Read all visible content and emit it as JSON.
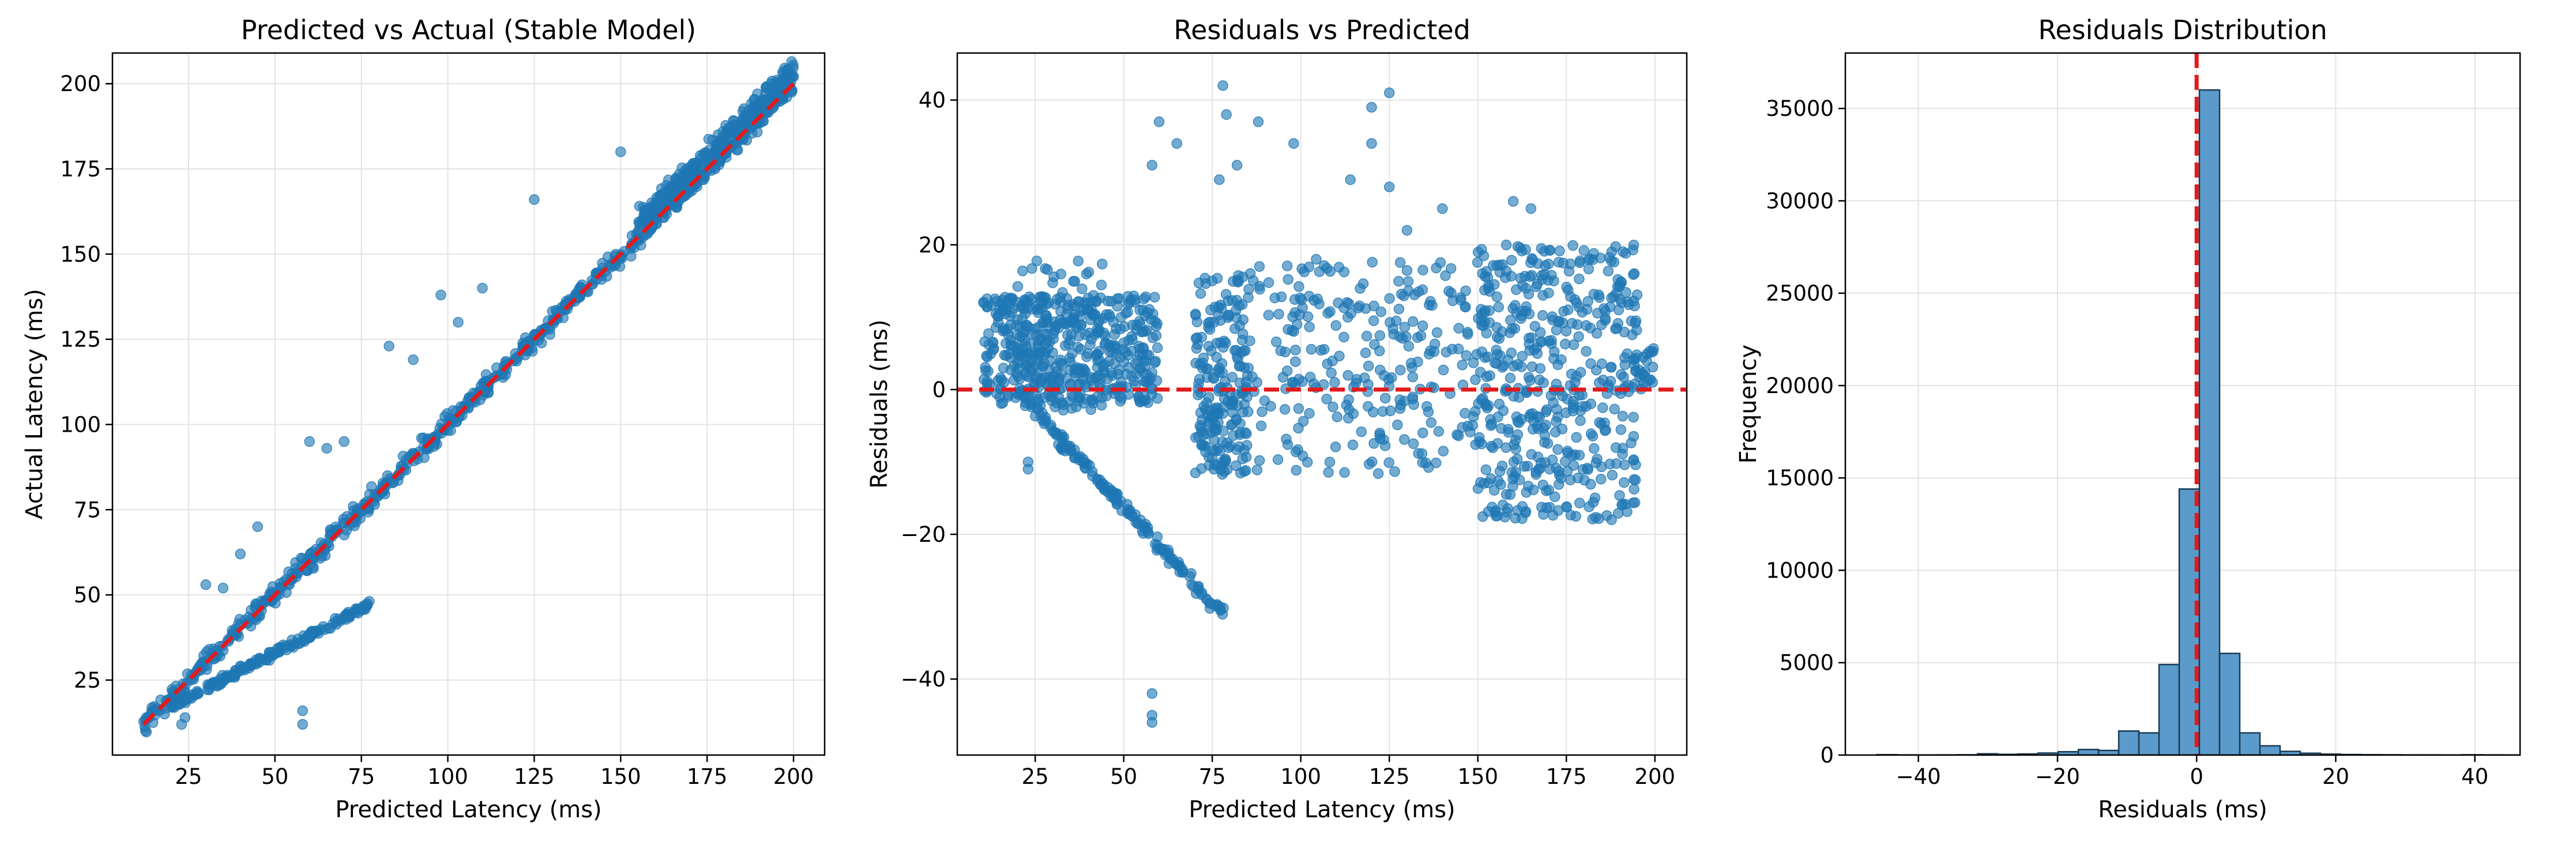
{
  "chart_data": [
    {
      "type": "scatter",
      "title": "Predicted vs Actual (Stable Model)",
      "xlabel": "Predicted Latency (ms)",
      "ylabel": "Actual Latency (ms)",
      "xlim": [
        3,
        209
      ],
      "ylim": [
        3,
        209
      ],
      "xticks": [
        25,
        50,
        75,
        100,
        125,
        150,
        175,
        200
      ],
      "yticks": [
        25,
        50,
        75,
        100,
        125,
        150,
        175,
        200
      ],
      "grid": true,
      "point_color": "#1f77b4",
      "reference_line": {
        "color": "#e31a1c",
        "style": "dashed",
        "x": [
          12,
          200
        ],
        "y": [
          12,
          200
        ]
      },
      "series": [
        {
          "segments": [
            {
              "x0": 12,
              "x1": 200,
              "slope": 1.0,
              "intercept": 0,
              "spread": 5,
              "n": 700
            },
            {
              "x0": 20,
              "x1": 78,
              "slope": 0.52,
              "intercept": 7,
              "spread": 2,
              "n": 180
            },
            {
              "x0": 155,
              "x1": 200,
              "slope": 1.0,
              "intercept": 4,
              "spread": 7,
              "n": 260
            }
          ],
          "outliers": [
            [
              23,
              12
            ],
            [
              24,
              14
            ],
            [
              58,
              12
            ],
            [
              58,
              16
            ],
            [
              30,
              53
            ],
            [
              35,
              52
            ],
            [
              60,
              95
            ],
            [
              65,
              93
            ],
            [
              98,
              138
            ],
            [
              125,
              166
            ],
            [
              150,
              180
            ],
            [
              70,
              95
            ],
            [
              83,
              123
            ],
            [
              110,
              140
            ],
            [
              45,
              70
            ],
            [
              40,
              62
            ],
            [
              90,
              119
            ],
            [
              103,
              130
            ]
          ]
        }
      ]
    },
    {
      "type": "scatter",
      "title": "Residuals vs Predicted",
      "xlabel": "Predicted Latency (ms)",
      "ylabel": "Residuals (ms)",
      "xlim": [
        3,
        209
      ],
      "ylim": [
        -50.5,
        46.5
      ],
      "xticks": [
        25,
        50,
        75,
        100,
        125,
        150,
        175,
        200
      ],
      "yticks": [
        -40,
        -20,
        0,
        20,
        40
      ],
      "grid": true,
      "point_color": "#1f77b4",
      "reference_line": {
        "color": "#e31a1c",
        "style": "dashed",
        "y": 0
      },
      "series": [
        {
          "clusters": [
            {
              "x0": 10,
              "x1": 60,
              "ymin": -2,
              "ymax": 13,
              "n": 420
            },
            {
              "x0": 20,
              "x1": 45,
              "ymin": -3,
              "ymax": 18,
              "n": 120
            },
            {
              "x0": 70,
              "x1": 85,
              "ymin": -12,
              "ymax": 16,
              "n": 200
            },
            {
              "x0": 85,
              "x1": 150,
              "ymin": -12,
              "ymax": 18,
              "n": 260
            },
            {
              "x0": 150,
              "x1": 195,
              "ymin": -18,
              "ymax": 20,
              "n": 480
            },
            {
              "x0": 195,
              "x1": 200,
              "ymin": 0,
              "ymax": 6,
              "n": 20
            }
          ],
          "trail": {
            "x0": 23,
            "x1": 78,
            "y0": -2,
            "y1": -31,
            "n": 160
          },
          "outliers": [
            [
              58,
              -45
            ],
            [
              58,
              -46
            ],
            [
              58,
              -42
            ],
            [
              23,
              -10
            ],
            [
              23,
              -11
            ],
            [
              78,
              42
            ],
            [
              60,
              37
            ],
            [
              65,
              34
            ],
            [
              79,
              38
            ],
            [
              98,
              34
            ],
            [
              120,
              34
            ],
            [
              125,
              41
            ],
            [
              120,
              39
            ],
            [
              77,
              29
            ],
            [
              82,
              31
            ],
            [
              125,
              28
            ],
            [
              130,
              22
            ],
            [
              140,
              25
            ],
            [
              160,
              26
            ],
            [
              165,
              25
            ],
            [
              58,
              31
            ],
            [
              88,
              37
            ],
            [
              114,
              29
            ]
          ]
        }
      ]
    },
    {
      "type": "bar",
      "subtype": "histogram",
      "title": "Residuals Distribution",
      "xlabel": "Residuals (ms)",
      "ylabel": "Frequency",
      "xlim": [
        -50.5,
        46.5
      ],
      "ylim": [
        0,
        38000
      ],
      "xticks": [
        -40,
        -20,
        0,
        20,
        40
      ],
      "yticks": [
        0,
        5000,
        10000,
        15000,
        20000,
        25000,
        30000,
        35000
      ],
      "grid": true,
      "bar_color": "#5b9bcb",
      "edge_color": "#1a3a52",
      "vline": {
        "x": 0,
        "color": "#e31a1c",
        "style": "dashed"
      },
      "bin_width": 2.9,
      "bin_edges_start": -46,
      "counts": [
        20,
        10,
        5,
        10,
        15,
        70,
        40,
        60,
        110,
        180,
        300,
        250,
        1300,
        1200,
        4900,
        14400,
        36000,
        5500,
        1200,
        500,
        200,
        100,
        50,
        30,
        20,
        15,
        10,
        10,
        5,
        15,
        10,
        5
      ]
    }
  ]
}
